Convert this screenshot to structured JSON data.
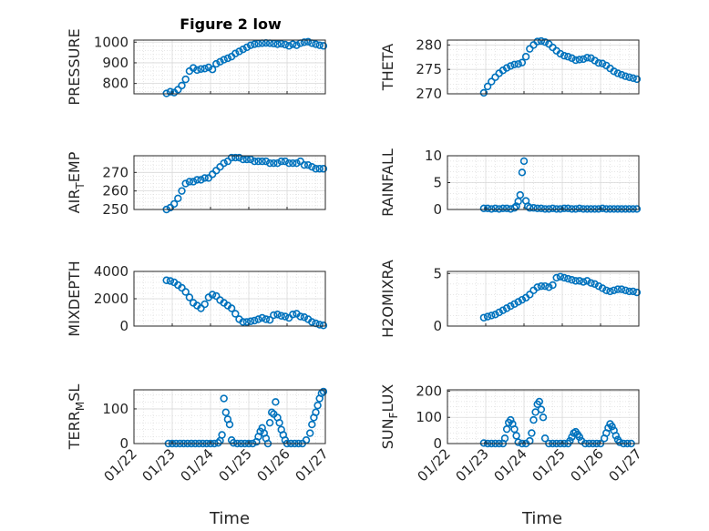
{
  "figure": {
    "title": "Figure 2 low",
    "xlabel": "Time",
    "marker_color": "#0072bd"
  },
  "chart_data": [
    {
      "type": "scatter",
      "ylabel": "PRESSURE",
      "ylim": [
        750,
        1010
      ],
      "yticks": [
        800,
        900,
        1000
      ],
      "xlim": [
        "01/22",
        "01/27"
      ],
      "xticks": [
        "01/22",
        "01/23",
        "01/24",
        "01/25",
        "01/26",
        "01/27"
      ],
      "show_xticklabels": false,
      "grid": true,
      "x_days": [
        0.85,
        0.95,
        1.05,
        1.15,
        1.25,
        1.35,
        1.45,
        1.55,
        1.65,
        1.75,
        1.85,
        1.95,
        2.05,
        2.15,
        2.25,
        2.35,
        2.45,
        2.55,
        2.65,
        2.75,
        2.85,
        2.95,
        3.05,
        3.15,
        3.25,
        3.35,
        3.45,
        3.55,
        3.65,
        3.75,
        3.85,
        3.95,
        4.05,
        4.15,
        4.25,
        4.35,
        4.45,
        4.55,
        4.65,
        4.75,
        4.85,
        4.95
      ],
      "y": [
        752,
        760,
        756,
        770,
        790,
        820,
        860,
        875,
        865,
        870,
        872,
        878,
        868,
        895,
        905,
        915,
        922,
        930,
        945,
        955,
        965,
        975,
        985,
        990,
        993,
        995,
        996,
        995,
        993,
        990,
        992,
        988,
        982,
        990,
        985,
        995,
        1000,
        1002,
        995,
        990,
        985,
        982
      ]
    },
    {
      "type": "scatter",
      "ylabel": "THETA",
      "ylim": [
        270,
        281
      ],
      "yticks": [
        270,
        275,
        280
      ],
      "xlim": [
        "01/22",
        "01/27"
      ],
      "xticks": [
        "01/22",
        "01/23",
        "01/24",
        "01/25",
        "01/26",
        "01/27"
      ],
      "show_xticklabels": false,
      "grid": true,
      "x_days": [
        0.95,
        1.05,
        1.15,
        1.25,
        1.35,
        1.45,
        1.55,
        1.65,
        1.75,
        1.85,
        1.95,
        2.05,
        2.15,
        2.25,
        2.35,
        2.45,
        2.55,
        2.65,
        2.75,
        2.85,
        2.95,
        3.05,
        3.15,
        3.25,
        3.35,
        3.45,
        3.55,
        3.65,
        3.75,
        3.85,
        3.95,
        4.05,
        4.15,
        4.25,
        4.35,
        4.45,
        4.55,
        4.65,
        4.75,
        4.85,
        4.95
      ],
      "y": [
        270.2,
        271.5,
        272.5,
        273.4,
        274.2,
        274.8,
        275.3,
        275.7,
        276.0,
        276.1,
        276.4,
        277.6,
        279.2,
        280.0,
        280.7,
        280.8,
        280.6,
        280.2,
        279.5,
        278.8,
        278.2,
        277.8,
        277.6,
        277.3,
        276.9,
        277.0,
        277.1,
        277.4,
        277.3,
        276.8,
        276.3,
        276.2,
        275.8,
        275.2,
        274.6,
        274.2,
        273.9,
        273.6,
        273.4,
        273.2,
        273.0
      ]
    },
    {
      "type": "scatter",
      "ylabel": "AIR_TEMP",
      "ylim": [
        250,
        279
      ],
      "yticks": [
        250,
        260,
        270
      ],
      "xlim": [
        "01/22",
        "01/27"
      ],
      "xticks": [
        "01/22",
        "01/23",
        "01/24",
        "01/25",
        "01/26",
        "01/27"
      ],
      "show_xticklabels": false,
      "grid": true,
      "x_days": [
        0.85,
        0.95,
        1.05,
        1.15,
        1.25,
        1.35,
        1.45,
        1.55,
        1.65,
        1.75,
        1.85,
        1.95,
        2.05,
        2.15,
        2.25,
        2.35,
        2.45,
        2.55,
        2.65,
        2.75,
        2.85,
        2.95,
        3.05,
        3.15,
        3.25,
        3.35,
        3.45,
        3.55,
        3.65,
        3.75,
        3.85,
        3.95,
        4.05,
        4.15,
        4.25,
        4.35,
        4.45,
        4.55,
        4.65,
        4.75,
        4.85,
        4.95
      ],
      "y": [
        250,
        251,
        253,
        256,
        260,
        264,
        265,
        265,
        266,
        266,
        267,
        267,
        269,
        271,
        273,
        275,
        276,
        278,
        278,
        278,
        277,
        277,
        277,
        276,
        276,
        276,
        276,
        275,
        275,
        275,
        276,
        276,
        275,
        275,
        275,
        276,
        274,
        274,
        273,
        272,
        272,
        272
      ]
    },
    {
      "type": "scatter",
      "ylabel": "RAINFALL",
      "ylim": [
        0,
        10
      ],
      "yticks": [
        0,
        5,
        10
      ],
      "xlim": [
        "01/22",
        "01/27"
      ],
      "xticks": [
        "01/22",
        "01/23",
        "01/24",
        "01/25",
        "01/26",
        "01/27"
      ],
      "show_xticklabels": false,
      "grid": true,
      "x_days": [
        0.95,
        1.05,
        1.15,
        1.25,
        1.35,
        1.45,
        1.55,
        1.65,
        1.75,
        1.8,
        1.85,
        1.9,
        1.95,
        2.0,
        2.05,
        2.1,
        2.15,
        2.25,
        2.35,
        2.45,
        2.55,
        2.65,
        2.75,
        2.85,
        2.95,
        3.05,
        3.15,
        3.25,
        3.35,
        3.45,
        3.55,
        3.65,
        3.75,
        3.85,
        3.95,
        4.05,
        4.15,
        4.25,
        4.35,
        4.45,
        4.55,
        4.65,
        4.75,
        4.85,
        4.95
      ],
      "y": [
        0.2,
        0.2,
        0.1,
        0.2,
        0.1,
        0.2,
        0.2,
        0.1,
        0.3,
        0.6,
        1.5,
        2.7,
        6.9,
        9.0,
        1.6,
        0.6,
        0.3,
        0.3,
        0.2,
        0.2,
        0.1,
        0.1,
        0.2,
        0.1,
        0.1,
        0.2,
        0.2,
        0.1,
        0.1,
        0.2,
        0.1,
        0.1,
        0.1,
        0.1,
        0.1,
        0.2,
        0.1,
        0.1,
        0.1,
        0.1,
        0.1,
        0.1,
        0.1,
        0.1,
        0.1
      ]
    },
    {
      "type": "scatter",
      "ylabel": "MIXDEPTH",
      "ylim": [
        0,
        4000
      ],
      "yticks": [
        0,
        2000,
        4000
      ],
      "xlim": [
        "01/22",
        "01/27"
      ],
      "xticks": [
        "01/22",
        "01/23",
        "01/24",
        "01/25",
        "01/26",
        "01/27"
      ],
      "show_xticklabels": false,
      "grid": true,
      "x_days": [
        0.85,
        0.95,
        1.05,
        1.15,
        1.25,
        1.35,
        1.45,
        1.55,
        1.65,
        1.75,
        1.85,
        1.95,
        2.05,
        2.15,
        2.25,
        2.35,
        2.45,
        2.55,
        2.65,
        2.75,
        2.85,
        2.95,
        3.05,
        3.15,
        3.25,
        3.35,
        3.45,
        3.55,
        3.65,
        3.75,
        3.85,
        3.95,
        4.05,
        4.15,
        4.25,
        4.35,
        4.45,
        4.55,
        4.65,
        4.75,
        4.85,
        4.95
      ],
      "y": [
        3350,
        3300,
        3200,
        3000,
        2800,
        2500,
        2100,
        1700,
        1500,
        1300,
        1600,
        2100,
        2300,
        2200,
        1900,
        1700,
        1500,
        1300,
        900,
        500,
        300,
        300,
        350,
        400,
        500,
        600,
        500,
        450,
        800,
        850,
        750,
        700,
        600,
        850,
        900,
        700,
        650,
        500,
        300,
        200,
        100,
        50
      ]
    },
    {
      "type": "scatter",
      "ylabel": "H2OMIXRA",
      "ylim": [
        0,
        5.2
      ],
      "yticks": [
        0,
        5
      ],
      "xlim": [
        "01/22",
        "01/27"
      ],
      "xticks": [
        "01/22",
        "01/23",
        "01/24",
        "01/25",
        "01/26",
        "01/27"
      ],
      "show_xticklabels": false,
      "grid": true,
      "x_days": [
        0.95,
        1.05,
        1.15,
        1.25,
        1.35,
        1.45,
        1.55,
        1.65,
        1.75,
        1.85,
        1.95,
        2.05,
        2.15,
        2.25,
        2.35,
        2.45,
        2.55,
        2.65,
        2.75,
        2.85,
        2.95,
        3.05,
        3.15,
        3.25,
        3.35,
        3.45,
        3.55,
        3.65,
        3.75,
        3.85,
        3.95,
        4.05,
        4.15,
        4.25,
        4.35,
        4.45,
        4.55,
        4.65,
        4.75,
        4.85,
        4.95
      ],
      "y": [
        0.8,
        0.9,
        1.0,
        1.1,
        1.3,
        1.5,
        1.7,
        1.9,
        2.1,
        2.3,
        2.5,
        2.7,
        3.0,
        3.4,
        3.7,
        3.8,
        3.8,
        3.7,
        3.9,
        4.6,
        4.7,
        4.6,
        4.5,
        4.4,
        4.3,
        4.3,
        4.2,
        4.3,
        4.1,
        4.0,
        3.8,
        3.6,
        3.4,
        3.3,
        3.4,
        3.5,
        3.5,
        3.4,
        3.3,
        3.3,
        3.2
      ]
    },
    {
      "type": "scatter",
      "ylabel": "TERR_MSL",
      "ylim": [
        0,
        155
      ],
      "yticks": [
        0,
        100
      ],
      "xlim": [
        "01/22",
        "01/27"
      ],
      "xticks": [
        "01/22",
        "01/23",
        "01/24",
        "01/25",
        "01/26",
        "01/27"
      ],
      "show_xticklabels": true,
      "grid": true,
      "x_days": [
        0.9,
        1.0,
        1.1,
        1.2,
        1.3,
        1.4,
        1.5,
        1.6,
        1.7,
        1.8,
        1.9,
        2.0,
        2.1,
        2.2,
        2.25,
        2.3,
        2.35,
        2.4,
        2.45,
        2.5,
        2.55,
        2.6,
        2.7,
        2.8,
        2.9,
        3.0,
        3.1,
        3.2,
        3.25,
        3.3,
        3.35,
        3.4,
        3.45,
        3.5,
        3.55,
        3.6,
        3.65,
        3.7,
        3.75,
        3.8,
        3.85,
        3.9,
        3.95,
        4.0,
        4.1,
        4.2,
        4.3,
        4.4,
        4.5,
        4.6,
        4.65,
        4.7,
        4.75,
        4.8,
        4.85,
        4.9,
        4.95
      ],
      "y": [
        0,
        0,
        0,
        0,
        0,
        0,
        0,
        0,
        0,
        0,
        0,
        0,
        0,
        2,
        8,
        25,
        130,
        90,
        70,
        55,
        10,
        2,
        0,
        0,
        0,
        0,
        0,
        5,
        20,
        35,
        45,
        30,
        15,
        0,
        60,
        90,
        85,
        120,
        75,
        60,
        40,
        25,
        10,
        0,
        0,
        0,
        0,
        0,
        10,
        30,
        55,
        75,
        90,
        110,
        130,
        145,
        150
      ]
    },
    {
      "type": "scatter",
      "ylabel": "SUN_FLUX",
      "ylim": [
        0,
        205
      ],
      "yticks": [
        0,
        100,
        200
      ],
      "xlim": [
        "01/22",
        "01/27"
      ],
      "xticks": [
        "01/22",
        "01/23",
        "01/24",
        "01/25",
        "01/26",
        "01/27"
      ],
      "show_xticklabels": true,
      "grid": true,
      "x_days": [
        0.95,
        1.05,
        1.15,
        1.25,
        1.35,
        1.45,
        1.5,
        1.55,
        1.6,
        1.65,
        1.7,
        1.75,
        1.8,
        1.85,
        1.95,
        2.05,
        2.15,
        2.2,
        2.25,
        2.3,
        2.35,
        2.4,
        2.45,
        2.5,
        2.55,
        2.65,
        2.75,
        2.85,
        2.95,
        3.05,
        3.15,
        3.2,
        3.25,
        3.3,
        3.35,
        3.4,
        3.45,
        3.5,
        3.6,
        3.7,
        3.8,
        3.9,
        4.0,
        4.1,
        4.15,
        4.2,
        4.25,
        4.3,
        4.35,
        4.4,
        4.45,
        4.5,
        4.6,
        4.7,
        4.8
      ],
      "y": [
        2,
        0,
        0,
        0,
        0,
        0,
        20,
        55,
        80,
        90,
        75,
        55,
        30,
        5,
        0,
        0,
        10,
        40,
        90,
        120,
        150,
        160,
        130,
        100,
        20,
        0,
        0,
        0,
        0,
        0,
        0,
        10,
        25,
        40,
        45,
        35,
        25,
        10,
        0,
        0,
        0,
        0,
        0,
        20,
        40,
        60,
        75,
        65,
        50,
        30,
        15,
        5,
        0,
        0,
        0
      ]
    }
  ]
}
